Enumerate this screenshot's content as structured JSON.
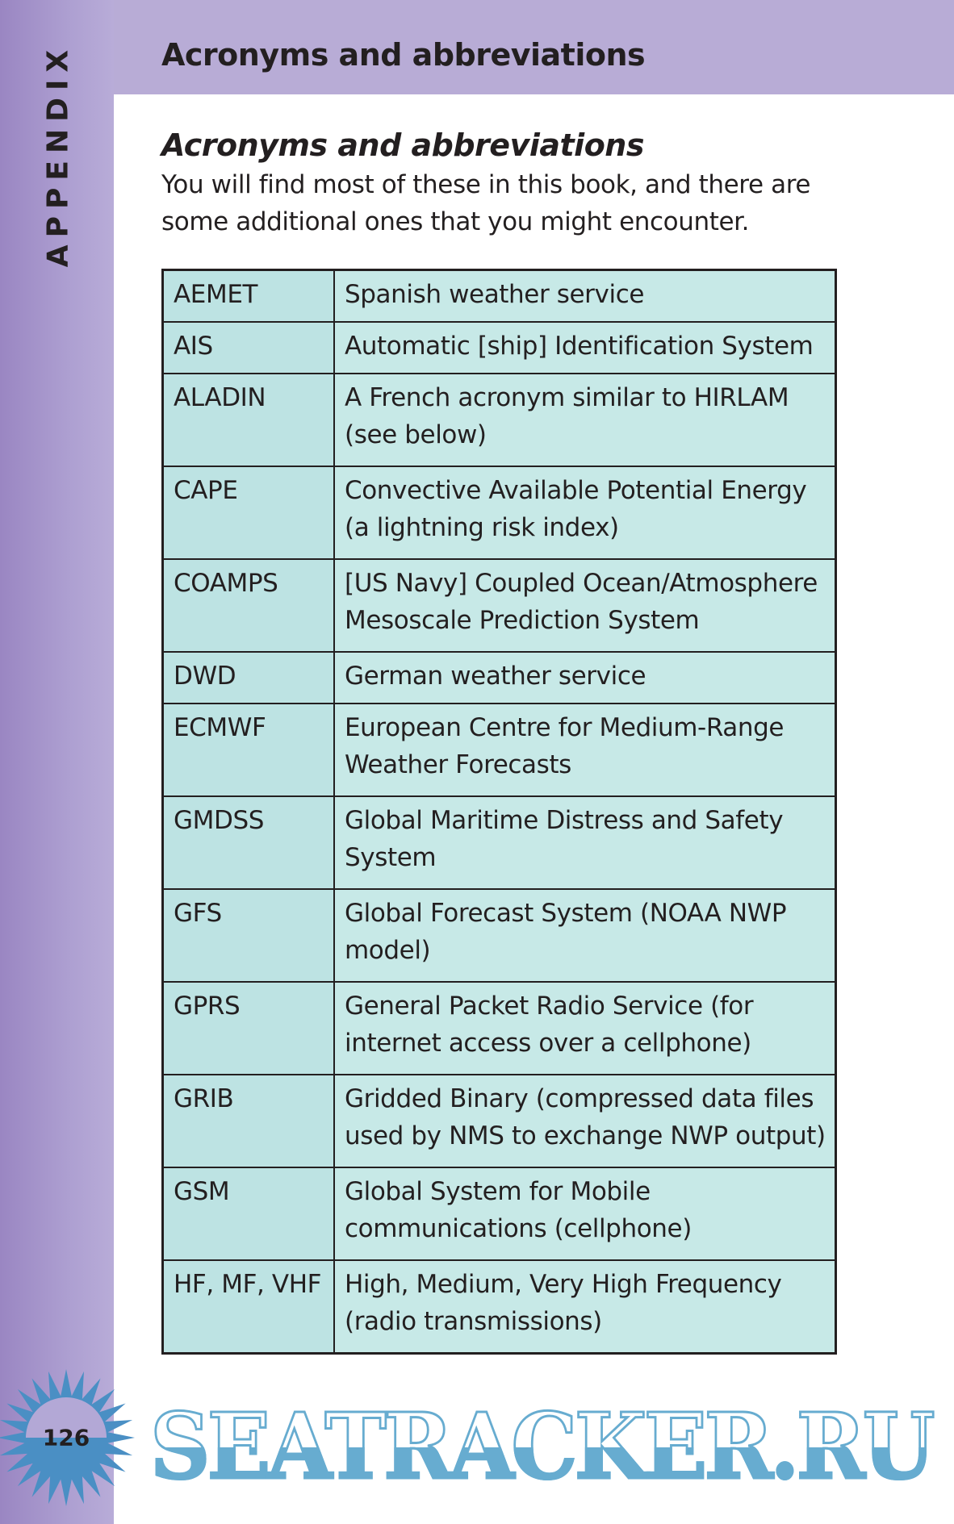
{
  "sidebar": {
    "label": "APPENDIX"
  },
  "header": {
    "title": "Acronyms and abbreviations"
  },
  "section": {
    "title": "Acronyms and abbreviations",
    "intro": "You will find most of these in this book, and there are some additional ones that you might encounter."
  },
  "table": {
    "rows": [
      {
        "term": "AEMET",
        "definition": "Spanish weather service",
        "lines": 1
      },
      {
        "term": "AIS",
        "definition": "Automatic [ship] Identification System",
        "lines": 1
      },
      {
        "term": "ALADIN",
        "definition": "A French acronym similar to HIRLAM (see below)",
        "lines": 2
      },
      {
        "term": "CAPE",
        "definition": "Convective Available Potential Energy (a lightning risk index)",
        "lines": 2
      },
      {
        "term": "COAMPS",
        "definition": "[US Navy] Coupled Ocean/Atmosphere Mesoscale Prediction System",
        "lines": 2
      },
      {
        "term": "DWD",
        "definition": "German weather service",
        "lines": 1
      },
      {
        "term": "ECMWF",
        "definition": "European Centre for Medium-Range Weather Forecasts",
        "lines": 2
      },
      {
        "term": "GMDSS",
        "definition": "Global Maritime Distress and Safety System",
        "lines": 2
      },
      {
        "term": "GFS",
        "definition": "Global Forecast System (NOAA NWP model)",
        "lines": 2
      },
      {
        "term": "GPRS",
        "definition": "General Packet Radio Service (for internet access over a cellphone)",
        "lines": 2
      },
      {
        "term": "GRIB",
        "definition": "Gridded Binary (compressed data files used by NMS to exchange NWP output)",
        "lines": 2
      },
      {
        "term": "GSM",
        "definition": "Global System for Mobile communications (cellphone)",
        "lines": 2
      },
      {
        "term": "HF, MF, VHF",
        "definition": "High, Medium, Very High Frequency (radio transmissions)",
        "lines": 2
      }
    ]
  },
  "footer": {
    "page_number": "126",
    "watermark": "SEATRACKER.RU"
  },
  "colors": {
    "header": "#b8acd6",
    "term_cell": "#bde3e3",
    "definition_cell": "#c7e9e7",
    "watermark": "#67acd0",
    "burst": "#4a8fc4"
  }
}
